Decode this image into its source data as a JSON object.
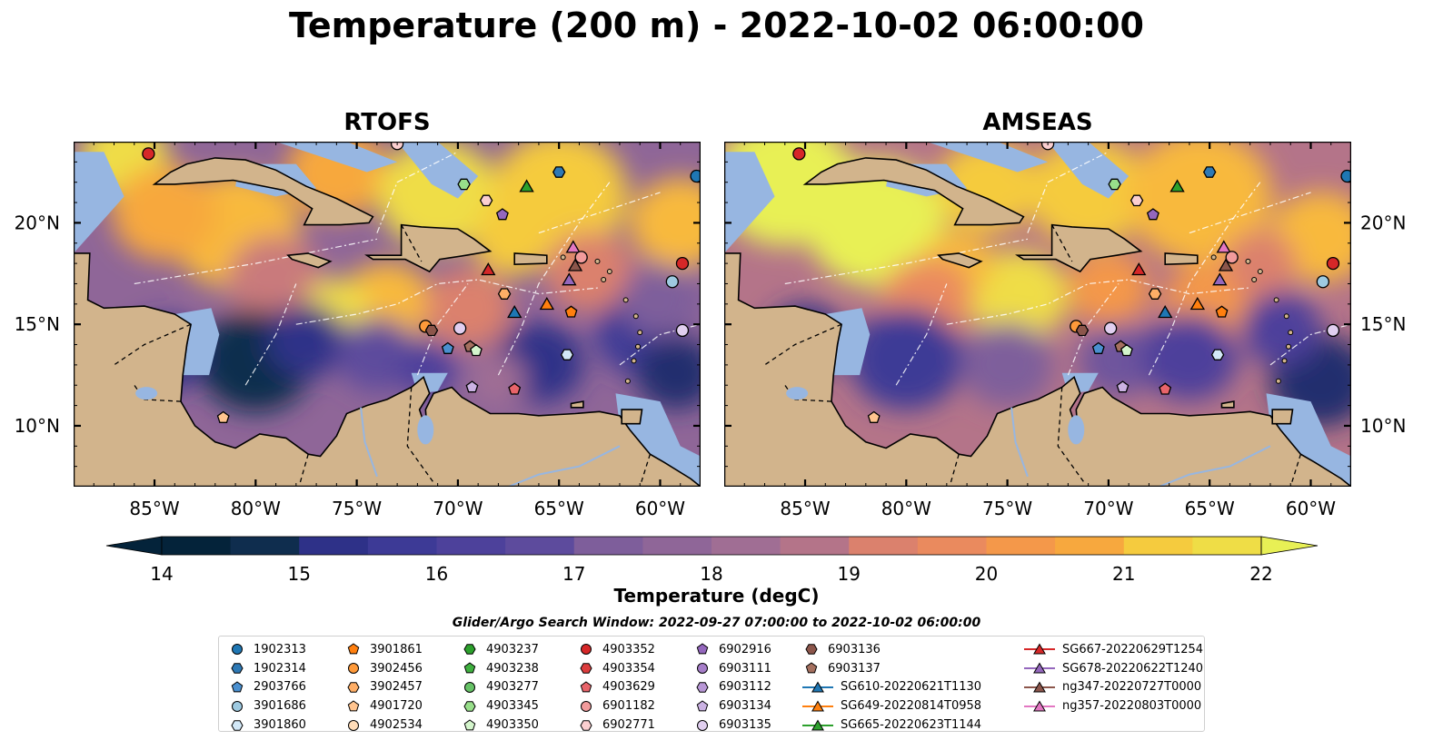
{
  "title": "Temperature (200 m) - 2022-10-02 06:00:00",
  "panels": [
    {
      "title": "RTOFS",
      "model": "rtofs"
    },
    {
      "title": "AMSEAS",
      "model": "amseas"
    }
  ],
  "map": {
    "lon_range": [
      -89,
      -58
    ],
    "lat_range": [
      7,
      24
    ],
    "lon_ticks": [
      "85°W",
      "80°W",
      "75°W",
      "70°W",
      "65°W",
      "60°W"
    ],
    "lat_ticks": [
      "20°N",
      "15°N",
      "10°N"
    ],
    "land_color": "#d2b48c",
    "shallow_color": "#97b6e1"
  },
  "colorbar": {
    "ticks": [
      "14",
      "15",
      "16",
      "17",
      "18",
      "19",
      "20",
      "21",
      "22"
    ],
    "label": "Temperature (degC)",
    "min": 14,
    "max": 22,
    "colors": [
      "#04233a",
      "#0f2d4e",
      "#232d6e",
      "#2e3188",
      "#3d3a96",
      "#4d419b",
      "#5d4b9d",
      "#6e559d",
      "#7e5e9b",
      "#8f6698",
      "#a06e94",
      "#b47489",
      "#c97a7c",
      "#db816d",
      "#ea8a5e",
      "#f4984a",
      "#f7a83e",
      "#f8b93c",
      "#f5cb3e",
      "#efdd46",
      "#e8f055"
    ]
  },
  "search_window": "Glider/Argo Search Window: 2022-09-27 07:00:00 to 2022-10-02 06:00:00",
  "legend_columns": [
    [
      {
        "label": "1902313",
        "marker": "circle",
        "color": "#1f77b4"
      },
      {
        "label": "1902314",
        "marker": "hexagon",
        "color": "#2e79b5"
      },
      {
        "label": "2903766",
        "marker": "pentagon",
        "color": "#4a90d0"
      },
      {
        "label": "3901686",
        "marker": "circle",
        "color": "#9ecae1"
      },
      {
        "label": "3901860",
        "marker": "hexagon",
        "color": "#d2e8f7"
      }
    ],
    [
      {
        "label": "3901861",
        "marker": "pentagon",
        "color": "#ff7f0e"
      },
      {
        "label": "3902456",
        "marker": "circle",
        "color": "#ff9a3a"
      },
      {
        "label": "3902457",
        "marker": "hexagon",
        "color": "#ffae66"
      },
      {
        "label": "4901720",
        "marker": "pentagon",
        "color": "#ffc48f"
      },
      {
        "label": "4902534",
        "marker": "circle",
        "color": "#ffdcb8"
      }
    ],
    [
      {
        "label": "4903237",
        "marker": "hexagon",
        "color": "#2ca02c"
      },
      {
        "label": "4903238",
        "marker": "pentagon",
        "color": "#3fb03f"
      },
      {
        "label": "4903277",
        "marker": "circle",
        "color": "#66c266"
      },
      {
        "label": "4903345",
        "marker": "hexagon",
        "color": "#98df8a"
      },
      {
        "label": "4903350",
        "marker": "pentagon",
        "color": "#d4f5cc"
      }
    ],
    [
      {
        "label": "4903352",
        "marker": "circle",
        "color": "#d62728"
      },
      {
        "label": "4903354",
        "marker": "hexagon",
        "color": "#dc3d3e"
      },
      {
        "label": "4903629",
        "marker": "pentagon",
        "color": "#e8646a"
      },
      {
        "label": "6901182",
        "marker": "circle",
        "color": "#f29b9c"
      },
      {
        "label": "6902771",
        "marker": "hexagon",
        "color": "#fbcfd0"
      }
    ],
    [
      {
        "label": "6902916",
        "marker": "pentagon",
        "color": "#9467bd"
      },
      {
        "label": "6903111",
        "marker": "circle",
        "color": "#a67ec9"
      },
      {
        "label": "6903112",
        "marker": "hexagon",
        "color": "#b897d6"
      },
      {
        "label": "6903134",
        "marker": "pentagon",
        "color": "#cbb2e3"
      },
      {
        "label": "6903135",
        "marker": "circle",
        "color": "#e1cff0"
      }
    ],
    [
      {
        "label": "6903136",
        "marker": "hexagon",
        "color": "#8c564b"
      },
      {
        "label": "6903137",
        "marker": "pentagon",
        "color": "#a5705f"
      },
      {
        "label": "SG610-20220621T1130",
        "marker": "triangle-line",
        "color": "#1f77b4"
      },
      {
        "label": "SG649-20220814T0958",
        "marker": "triangle-line",
        "color": "#ff7f0e"
      },
      {
        "label": "SG665-20220623T1144",
        "marker": "triangle-line",
        "color": "#2ca02c"
      }
    ],
    [
      {
        "label": "SG667-20220629T1254",
        "marker": "triangle-line",
        "color": "#d62728"
      },
      {
        "label": "SG678-20220622T1240",
        "marker": "triangle-line",
        "color": "#9467bd"
      },
      {
        "label": "ng347-20220727T0000",
        "marker": "triangle-line",
        "color": "#8c564b"
      },
      {
        "label": "ng357-20220803T0000",
        "marker": "triangle-line",
        "color": "#e377c2"
      }
    ]
  ],
  "markers_on_map": [
    {
      "lon": -85.3,
      "lat": 23.4,
      "marker": "circle",
      "color": "#d62728"
    },
    {
      "lon": -73.0,
      "lat": 23.9,
      "marker": "circle",
      "color": "#fbcfd0"
    },
    {
      "lon": -58.2,
      "lat": 22.3,
      "marker": "circle",
      "color": "#1f77b4"
    },
    {
      "lon": -69.7,
      "lat": 21.9,
      "marker": "hexagon",
      "color": "#98df8a"
    },
    {
      "lon": -65.0,
      "lat": 22.5,
      "marker": "hexagon",
      "color": "#2e79b5"
    },
    {
      "lon": -68.6,
      "lat": 21.1,
      "marker": "hexagon",
      "color": "#fbcfd0"
    },
    {
      "lon": -67.8,
      "lat": 20.4,
      "marker": "pentagon",
      "color": "#9467bd"
    },
    {
      "lon": -66.6,
      "lat": 21.8,
      "marker": "triangle",
      "color": "#2ca02c"
    },
    {
      "lon": -64.3,
      "lat": 18.8,
      "marker": "triangle",
      "color": "#e377c2"
    },
    {
      "lon": -63.9,
      "lat": 18.3,
      "marker": "circle",
      "color": "#f29b9c"
    },
    {
      "lon": -64.2,
      "lat": 17.9,
      "marker": "triangle",
      "color": "#8c564b"
    },
    {
      "lon": -68.5,
      "lat": 17.7,
      "marker": "triangle",
      "color": "#d62728"
    },
    {
      "lon": -64.5,
      "lat": 17.2,
      "marker": "triangle",
      "color": "#9467bd"
    },
    {
      "lon": -59.4,
      "lat": 17.1,
      "marker": "circle",
      "color": "#9ecae1"
    },
    {
      "lon": -58.9,
      "lat": 18.0,
      "marker": "circle",
      "color": "#d62728"
    },
    {
      "lon": -67.7,
      "lat": 16.5,
      "marker": "hexagon",
      "color": "#ffae66"
    },
    {
      "lon": -65.6,
      "lat": 16.0,
      "marker": "triangle",
      "color": "#ff7f0e"
    },
    {
      "lon": -67.2,
      "lat": 15.6,
      "marker": "triangle",
      "color": "#1f77b4"
    },
    {
      "lon": -64.4,
      "lat": 15.6,
      "marker": "pentagon",
      "color": "#ff7f0e"
    },
    {
      "lon": -71.6,
      "lat": 14.9,
      "marker": "circle",
      "color": "#ff9a3a"
    },
    {
      "lon": -71.3,
      "lat": 14.7,
      "marker": "hexagon",
      "color": "#8c564b"
    },
    {
      "lon": -69.9,
      "lat": 14.8,
      "marker": "circle",
      "color": "#e1cff0"
    },
    {
      "lon": -58.9,
      "lat": 14.7,
      "marker": "circle",
      "color": "#e1cff0"
    },
    {
      "lon": -70.5,
      "lat": 13.8,
      "marker": "pentagon",
      "color": "#4a90d0"
    },
    {
      "lon": -69.4,
      "lat": 13.9,
      "marker": "pentagon",
      "color": "#a5705f"
    },
    {
      "lon": -69.1,
      "lat": 13.7,
      "marker": "pentagon",
      "color": "#d4f5cc"
    },
    {
      "lon": -64.6,
      "lat": 13.5,
      "marker": "hexagon",
      "color": "#d2e8f7"
    },
    {
      "lon": -69.3,
      "lat": 11.9,
      "marker": "pentagon",
      "color": "#cbb2e3"
    },
    {
      "lon": -67.2,
      "lat": 11.8,
      "marker": "pentagon",
      "color": "#e8646a"
    },
    {
      "lon": -81.6,
      "lat": 10.4,
      "marker": "pentagon",
      "color": "#ffc48f"
    }
  ]
}
